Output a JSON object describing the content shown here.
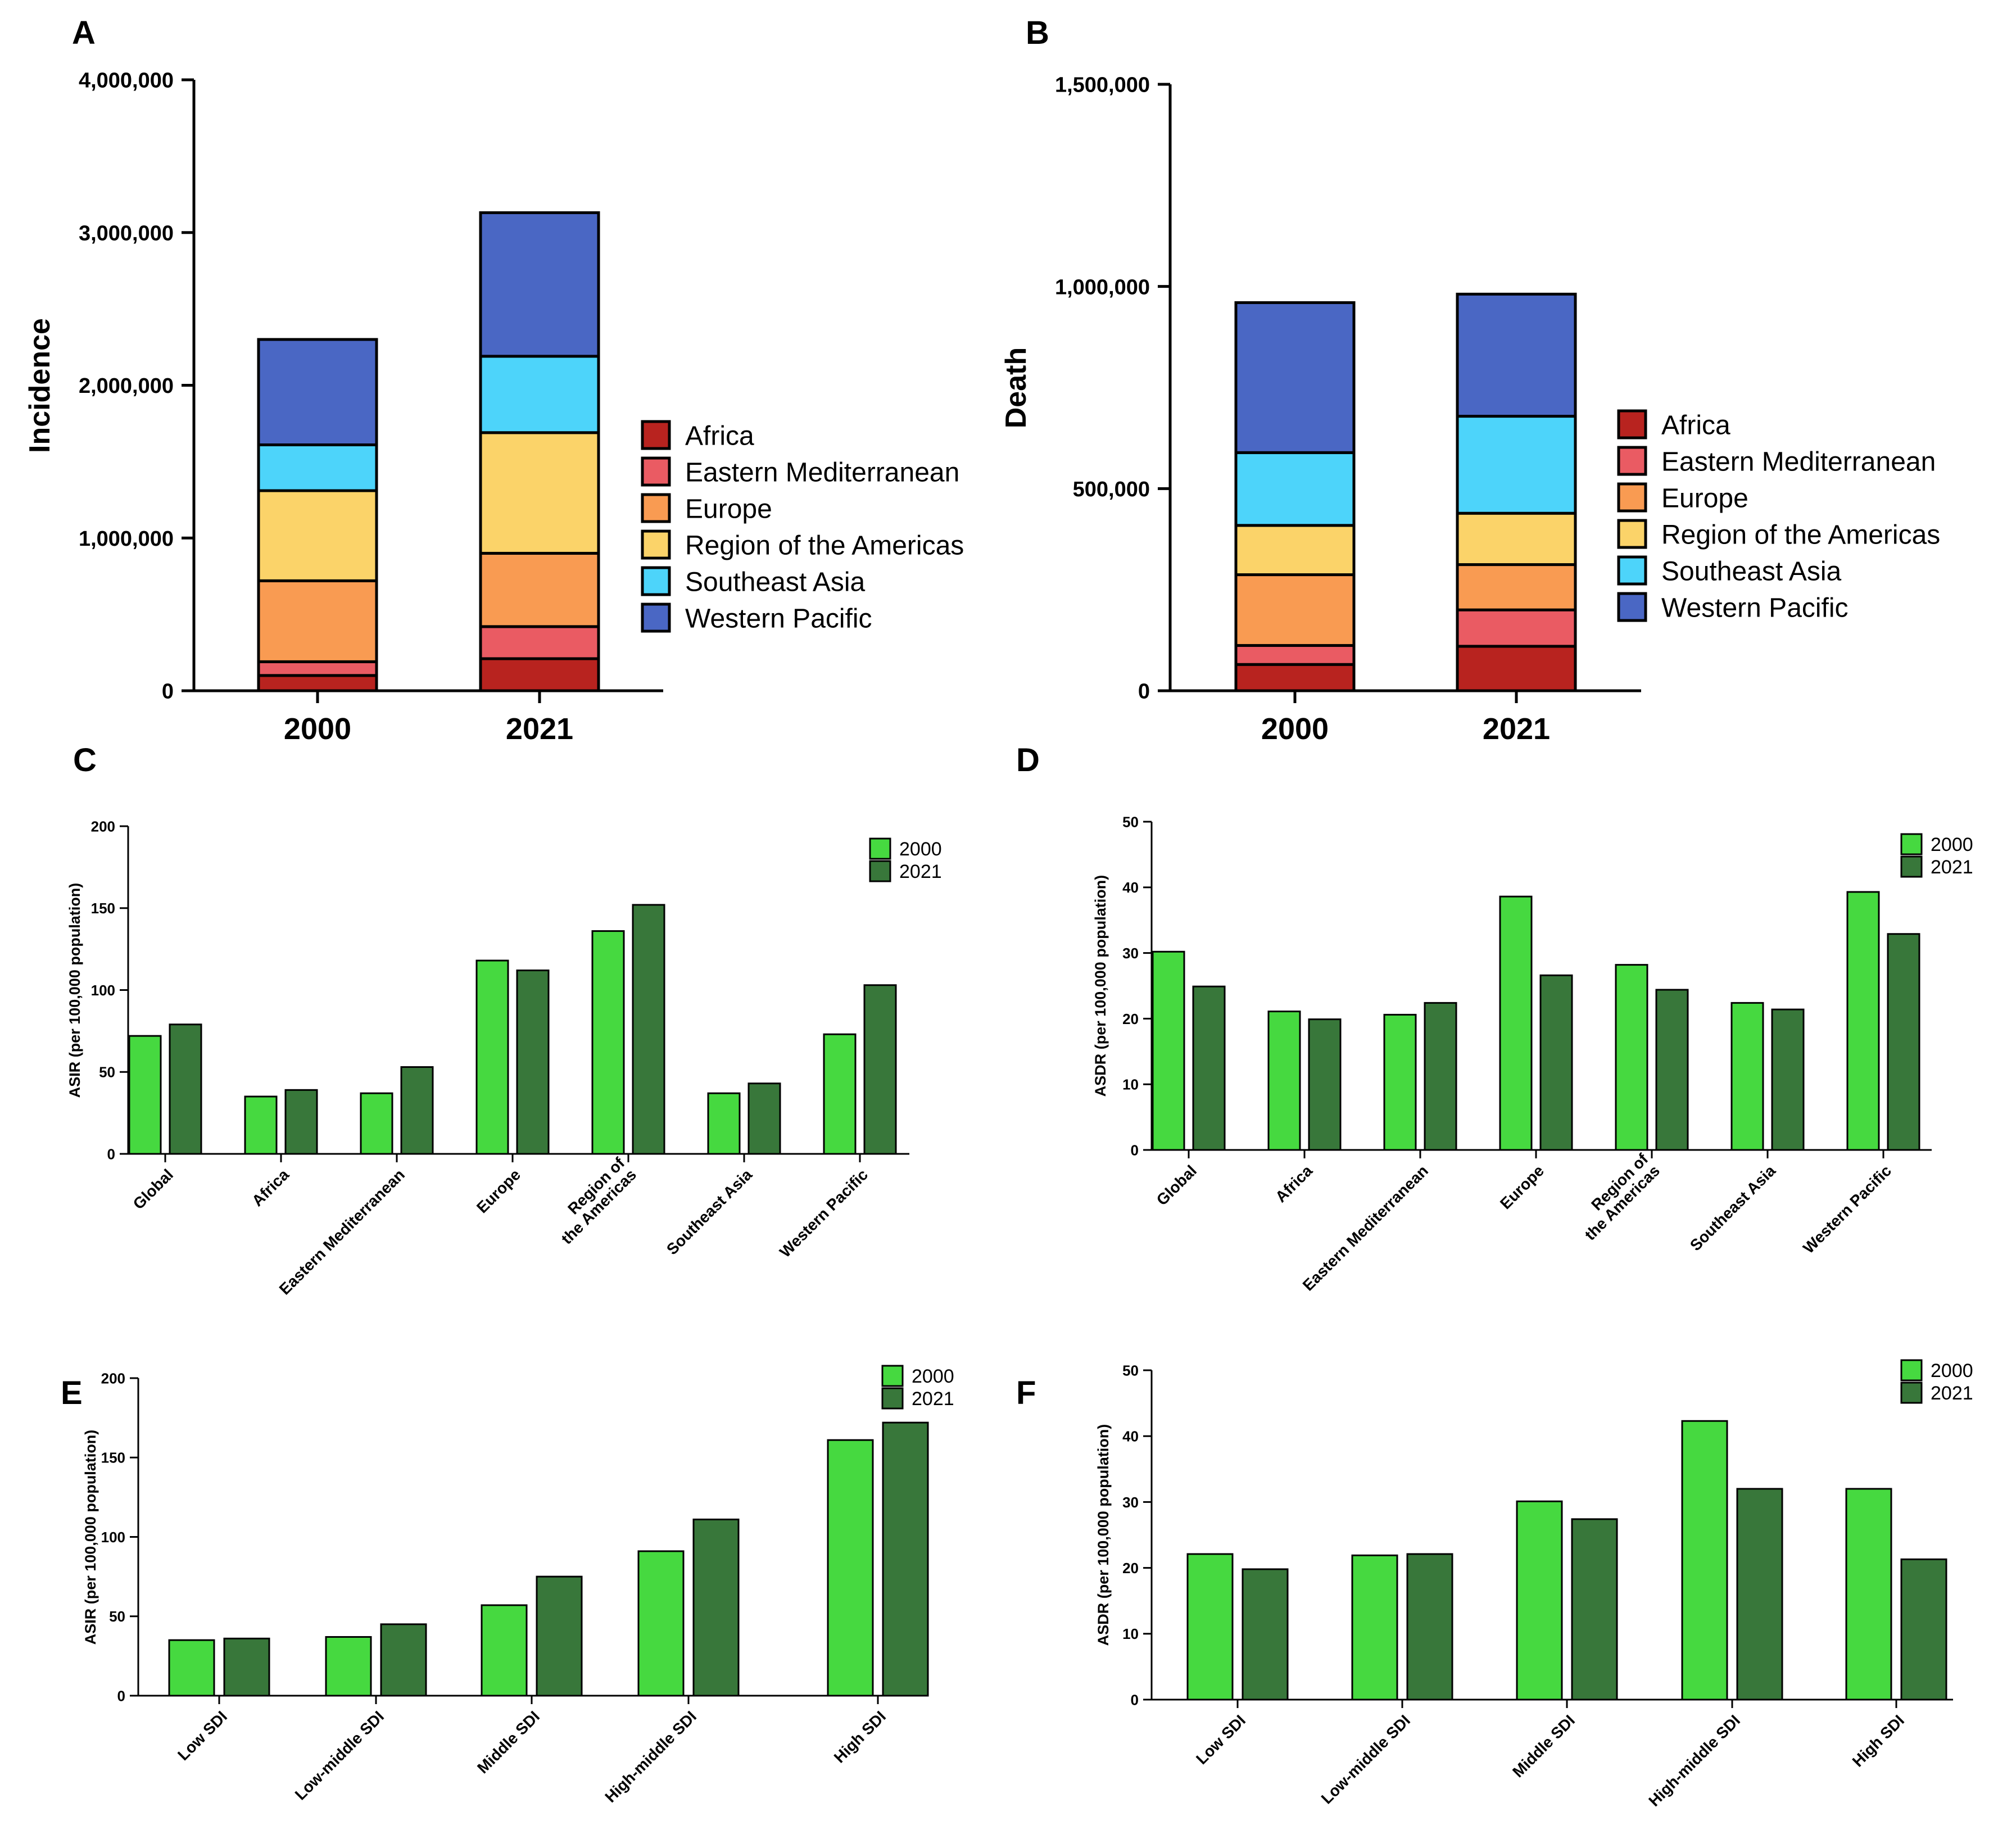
{
  "figure": {
    "panel_letters": [
      "A",
      "B",
      "C",
      "D",
      "E",
      "F"
    ]
  },
  "colors": {
    "Africa": "#b8231f",
    "Eastern Mediterranean": "#ea5b63",
    "Europe": "#f99b52",
    "Region of the Americas": "#fbd369",
    "Southeast Asia": "#4dd4fa",
    "Western Pacific": "#4a67c4",
    "y2000": "#46d940",
    "y2021": "#38773a",
    "outline": "#000000"
  },
  "chart_data": [
    {
      "id": "A",
      "type": "bar",
      "stacked": true,
      "title": "",
      "xlabel": "",
      "ylabel": "Incidence",
      "ylim": [
        0,
        4000000
      ],
      "yticks": [
        0,
        1000000,
        2000000,
        3000000,
        4000000
      ],
      "ytick_labels": [
        "0",
        "1,000,000",
        "2,000,000",
        "3,000,000",
        "4,000,000"
      ],
      "categories": [
        "2000",
        "2021"
      ],
      "series": [
        {
          "name": "Africa",
          "values": [
            100000,
            210000
          ]
        },
        {
          "name": "Eastern Mediterranean",
          "values": [
            90000,
            210000
          ]
        },
        {
          "name": "Europe",
          "values": [
            530000,
            480000
          ]
        },
        {
          "name": "Region of the Americas",
          "values": [
            590000,
            790000
          ]
        },
        {
          "name": "Southeast Asia",
          "values": [
            300000,
            500000
          ]
        },
        {
          "name": "Western Pacific",
          "values": [
            690000,
            940000
          ]
        }
      ],
      "legend": "right"
    },
    {
      "id": "B",
      "type": "bar",
      "stacked": true,
      "title": "",
      "xlabel": "",
      "ylabel": "Death",
      "ylim": [
        0,
        1500000
      ],
      "yticks": [
        0,
        500000,
        1000000,
        1500000
      ],
      "ytick_labels": [
        "0",
        "500,000",
        "1,000,000",
        "1,500,000"
      ],
      "categories": [
        "2000",
        "2021"
      ],
      "series": [
        {
          "name": "Africa",
          "values": [
            65000,
            110000
          ]
        },
        {
          "name": "Eastern Mediterranean",
          "values": [
            47000,
            90000
          ]
        },
        {
          "name": "Europe",
          "values": [
            175000,
            112000
          ]
        },
        {
          "name": "Region of the Americas",
          "values": [
            122000,
            127000
          ]
        },
        {
          "name": "Southeast Asia",
          "values": [
            180000,
            240000
          ]
        },
        {
          "name": "Western Pacific",
          "values": [
            371000,
            302000
          ]
        }
      ],
      "legend": "right"
    },
    {
      "id": "C",
      "type": "bar",
      "title": "",
      "xlabel": "",
      "ylabel": "ASIR (per 100,000 population)",
      "ylim": [
        0,
        200
      ],
      "yticks": [
        0,
        50,
        100,
        150,
        200
      ],
      "ytick_labels": [
        "0",
        "50",
        "100",
        "150",
        "200"
      ],
      "categories": [
        "Global",
        "Africa",
        "Eastern Mediterranean",
        "Europe",
        "Region of the Americas",
        "Southeast Asia",
        "Western Pacific"
      ],
      "category_labels": [
        [
          "Global"
        ],
        [
          "Africa"
        ],
        [
          "Eastern Mediterranean"
        ],
        [
          "Europe"
        ],
        [
          "Region of",
          "the Americas"
        ],
        [
          "Southeast Asia"
        ],
        [
          "Western Pacific"
        ]
      ],
      "series": [
        {
          "name": "2000",
          "values": [
            72,
            35,
            37,
            118,
            136,
            37,
            73
          ]
        },
        {
          "name": "2021",
          "values": [
            79,
            39,
            53,
            112,
            152,
            43,
            103
          ]
        }
      ],
      "legend": "top-right"
    },
    {
      "id": "D",
      "type": "bar",
      "title": "",
      "xlabel": "",
      "ylabel": "ASDR (per 100,000 population)",
      "ylim": [
        0,
        50
      ],
      "yticks": [
        0,
        10,
        20,
        30,
        40,
        50
      ],
      "ytick_labels": [
        "0",
        "10",
        "20",
        "30",
        "40",
        "50"
      ],
      "categories": [
        "Global",
        "Africa",
        "Eastern Mediterranean",
        "Europe",
        "Region of the Americas",
        "Southeast Asia",
        "Western Pacific"
      ],
      "category_labels": [
        [
          "Global"
        ],
        [
          "Africa"
        ],
        [
          "Eastern Mediterranean"
        ],
        [
          "Europe"
        ],
        [
          "Region of",
          "the Americas"
        ],
        [
          "Southeast Asia"
        ],
        [
          "Western Pacific"
        ]
      ],
      "series": [
        {
          "name": "2000",
          "values": [
            30.2,
            21.1,
            20.6,
            38.6,
            28.2,
            22.4,
            39.3
          ]
        },
        {
          "name": "2021",
          "values": [
            24.9,
            19.9,
            22.4,
            26.6,
            24.4,
            21.4,
            32.9
          ]
        }
      ],
      "legend": "top-right"
    },
    {
      "id": "E",
      "type": "bar",
      "title": "",
      "xlabel": "",
      "ylabel": "ASIR (per 100,000 population)",
      "ylim": [
        0,
        200
      ],
      "yticks": [
        0,
        50,
        100,
        150,
        200
      ],
      "ytick_labels": [
        "0",
        "50",
        "100",
        "150",
        "200"
      ],
      "categories": [
        "Low SDI",
        "Low-middle SDI",
        "Middle SDI",
        "High-middle SDI",
        "High SDI"
      ],
      "category_labels": [
        [
          "Low SDI"
        ],
        [
          "Low-middle SDI"
        ],
        [
          "Middle SDI"
        ],
        [
          "High-middle SDI"
        ],
        [
          "High SDI"
        ]
      ],
      "series": [
        {
          "name": "2000",
          "values": [
            35,
            37,
            57,
            91,
            161
          ]
        },
        {
          "name": "2021",
          "values": [
            36,
            45,
            75,
            111,
            172
          ]
        }
      ],
      "legend": "top-right"
    },
    {
      "id": "F",
      "type": "bar",
      "title": "",
      "xlabel": "",
      "ylabel": "ASDR (per 100,000 population)",
      "ylim": [
        0,
        50
      ],
      "yticks": [
        0,
        10,
        20,
        30,
        40,
        50
      ],
      "ytick_labels": [
        "0",
        "10",
        "20",
        "30",
        "40",
        "50"
      ],
      "categories": [
        "Low SDI",
        "Low-middle SDI",
        "Middle SDI",
        "High-middle SDI",
        "High SDI"
      ],
      "category_labels": [
        [
          "Low SDI"
        ],
        [
          "Low-middle SDI"
        ],
        [
          "Middle SDI"
        ],
        [
          "High-middle SDI"
        ],
        [
          "High SDI"
        ]
      ],
      "series": [
        {
          "name": "2000",
          "values": [
            22.1,
            21.9,
            30.1,
            42.3,
            32.0
          ]
        },
        {
          "name": "2021",
          "values": [
            19.8,
            22.1,
            27.4,
            32.0,
            21.3
          ]
        }
      ],
      "legend": "top-right"
    }
  ]
}
